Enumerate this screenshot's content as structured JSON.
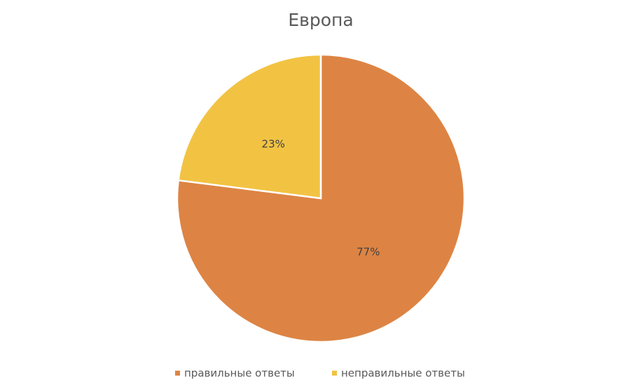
{
  "chart_data": {
    "type": "pie",
    "title": "Европа",
    "categories": [
      "правильные ответы",
      "неправильные ответы"
    ],
    "values": [
      77,
      23
    ],
    "value_labels": [
      "77%",
      "23%"
    ],
    "colors": [
      "#dd8444",
      "#f2c343"
    ],
    "legend": "bottom"
  }
}
